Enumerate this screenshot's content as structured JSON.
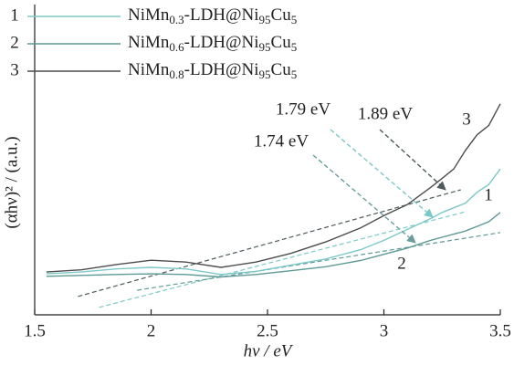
{
  "chart_data": {
    "type": "line",
    "x_label": "hν / eV",
    "y_label": "(αhν)² / (a.u.)",
    "x": [
      1.55,
      1.7,
      1.85,
      2.0,
      2.15,
      2.3,
      2.45,
      2.6,
      2.75,
      2.9,
      3.0,
      3.1,
      3.2,
      3.25,
      3.3,
      3.35,
      3.4,
      3.45,
      3.5
    ],
    "series": [
      {
        "label": "1",
        "name": "NiMn0.3-LDH@Ni95Cu5",
        "color": "#7cc8c8",
        "values": [
          1.32,
          1.38,
          1.48,
          1.53,
          1.48,
          1.3,
          1.4,
          1.6,
          1.8,
          2.1,
          2.4,
          2.75,
          3.1,
          3.3,
          3.45,
          3.6,
          3.95,
          4.2,
          4.7
        ]
      },
      {
        "label": "2",
        "name": "NiMn0.6-LDH@Ni95Cu5",
        "color": "#5e9996",
        "values": [
          1.24,
          1.27,
          1.3,
          1.32,
          1.3,
          1.22,
          1.3,
          1.42,
          1.55,
          1.75,
          1.95,
          2.15,
          2.4,
          2.5,
          2.6,
          2.7,
          2.85,
          3.0,
          3.3
        ]
      },
      {
        "label": "3",
        "name": "NiMn0.8-LDH@Ni95Cu5",
        "color": "#4d4d4d",
        "values": [
          1.38,
          1.45,
          1.62,
          1.76,
          1.7,
          1.53,
          1.7,
          1.98,
          2.35,
          2.8,
          3.2,
          3.55,
          4.1,
          4.4,
          4.7,
          5.3,
          5.8,
          6.1,
          6.8
        ]
      }
    ],
    "tangents": [
      {
        "x": [
          1.777,
          3.35
        ],
        "values": [
          0.24,
          3.32
        ],
        "color": "#7cc8c8"
      },
      {
        "x": [
          1.94,
          3.5
        ],
        "values": [
          0.79,
          2.65
        ],
        "color": "#5e9996"
      },
      {
        "x": [
          1.686,
          3.33
        ],
        "values": [
          0.59,
          4.03
        ],
        "color": "#4d5a5e"
      }
    ],
    "annotations": [
      {
        "text": "1.79 eV",
        "color": "#7cc8c8"
      },
      {
        "text": "1.74 eV",
        "color": "#6a9c9d"
      },
      {
        "text": "1.89 eV",
        "color": "#4d5a5e"
      }
    ],
    "xlim": [
      1.5,
      3.5
    ],
    "xticks": [
      1.5,
      2.0,
      2.5,
      3.0,
      3.5
    ],
    "ylim": [
      0,
      10
    ],
    "legend": "upper left"
  }
}
